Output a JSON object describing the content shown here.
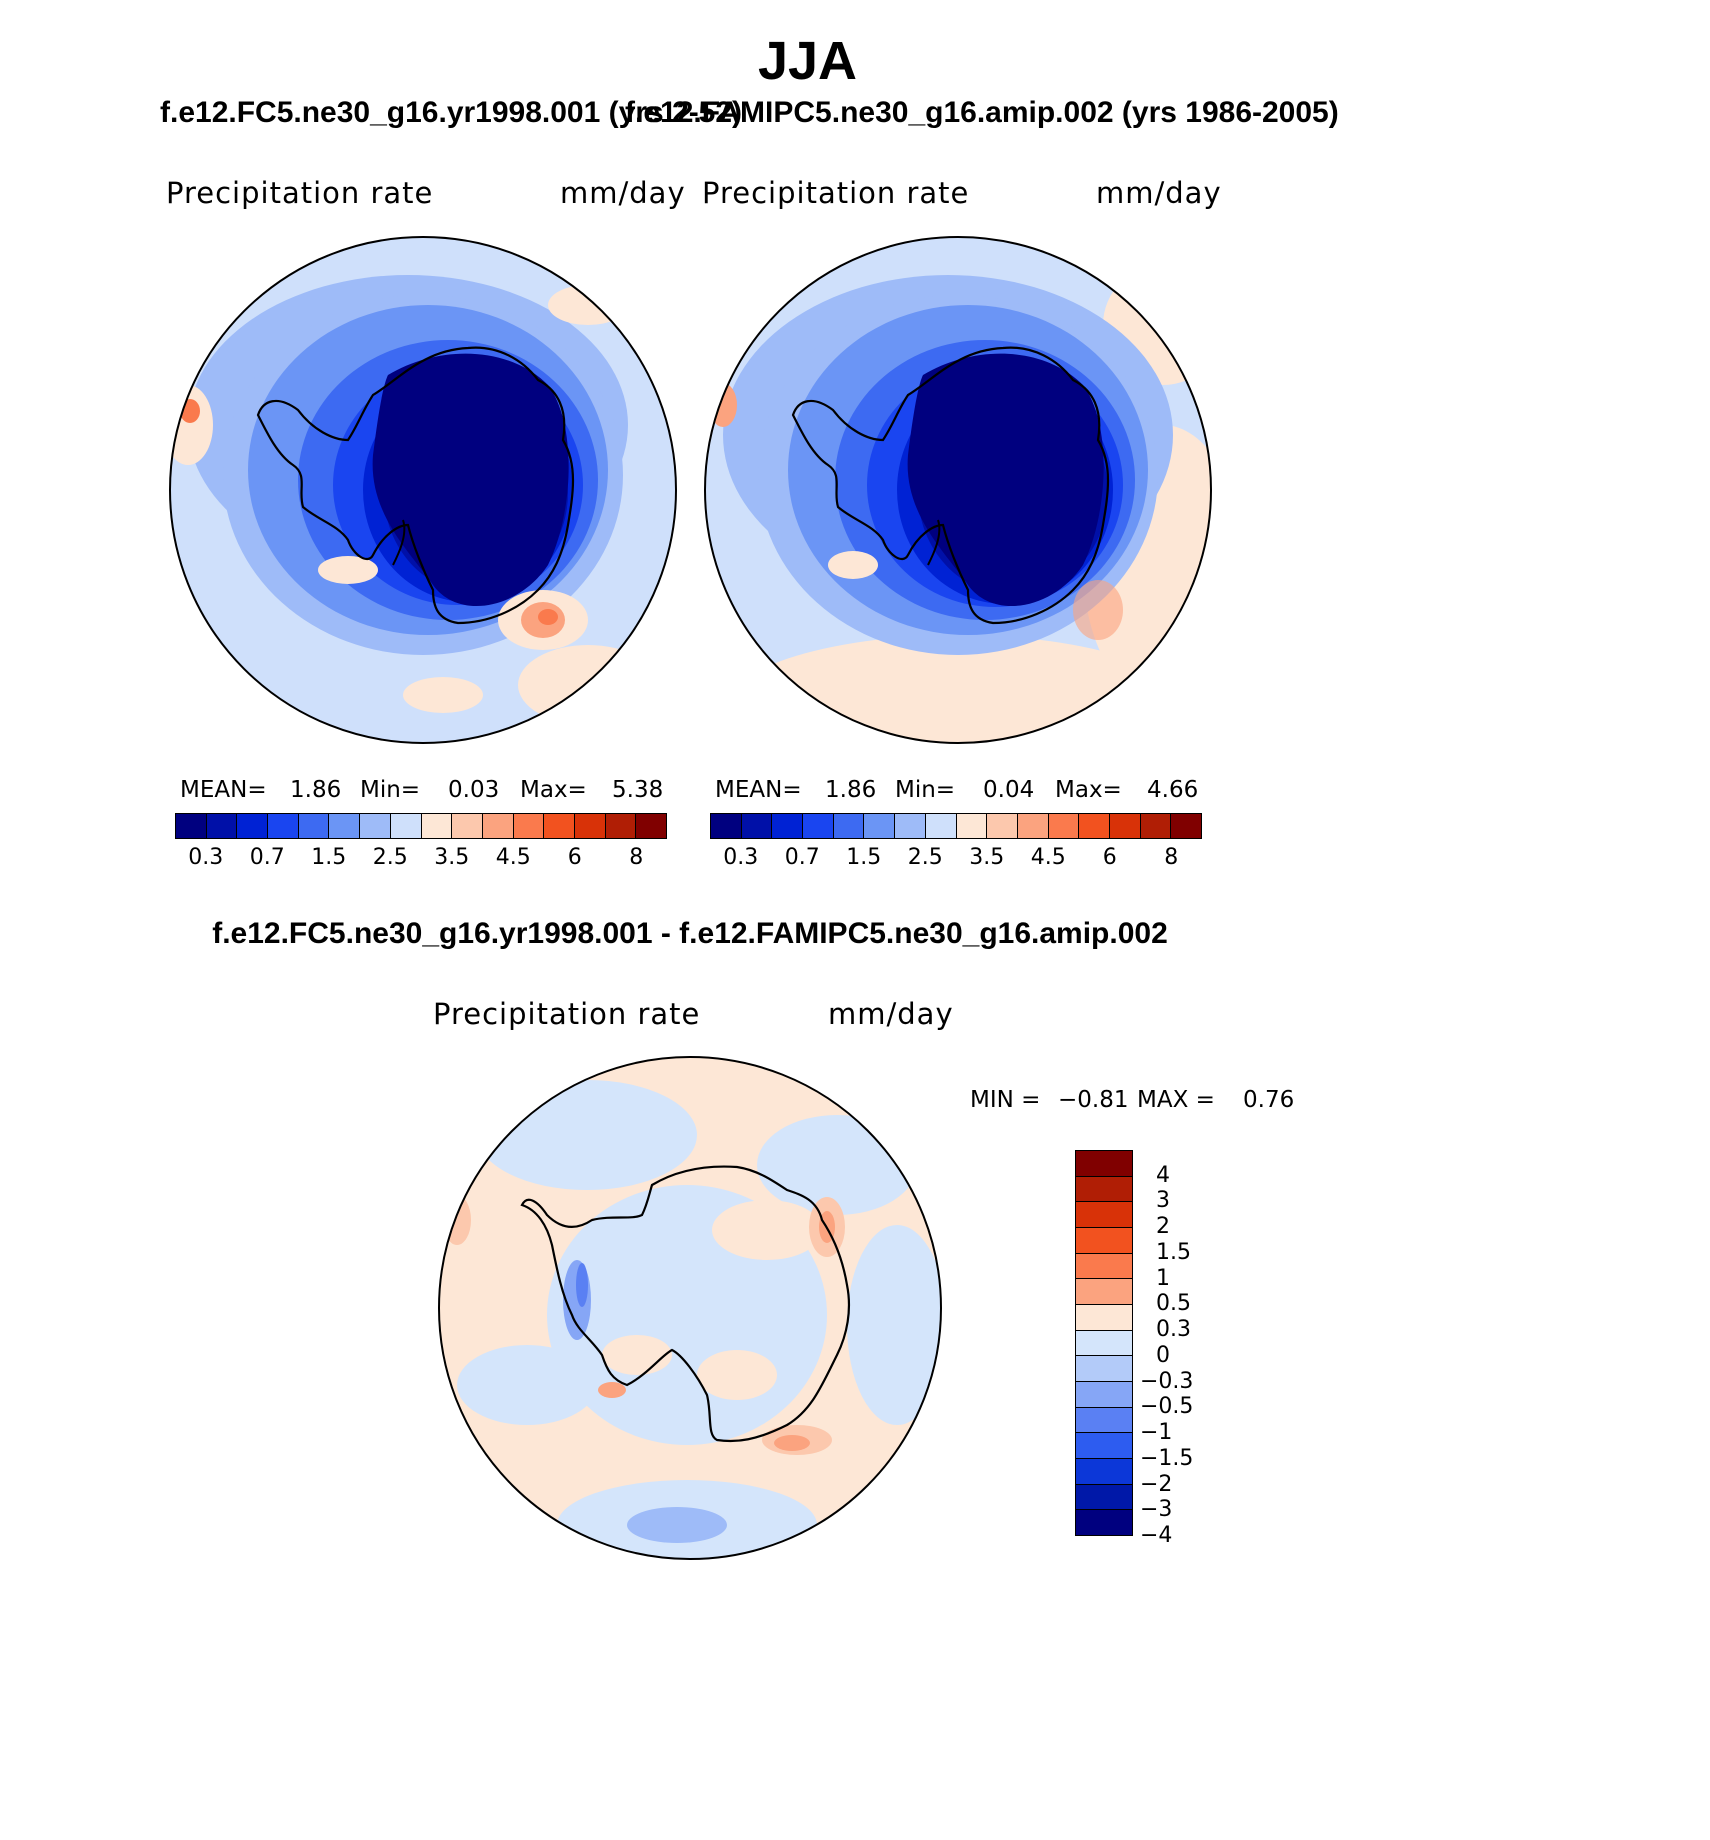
{
  "season": "JJA",
  "panel1": {
    "title": "f.e12.FC5.ne30_g16.yr1998.001 (yrs 2-52)",
    "variable": "Precipitation rate",
    "units": "mm/day",
    "mean_label": "MEAN=",
    "mean": "1.86",
    "min_label": "Min=",
    "min": "0.03",
    "max_label": "Max=",
    "max": "5.38"
  },
  "panel2": {
    "title": "f.e12.FAMIPC5.ne30_g16.amip.002 (yrs 1986-2005)",
    "variable": "Precipitation rate",
    "units": "mm/day",
    "mean_label": "MEAN=",
    "mean": "1.86",
    "min_label": "Min=",
    "min": "0.04",
    "max_label": "Max=",
    "max": "4.66"
  },
  "panel3": {
    "title": "f.e12.FC5.ne30_g16.yr1998.001 - f.e12.FAMIPC5.ne30_g16.amip.002",
    "variable": "Precipitation rate",
    "units": "mm/day",
    "min_label": "MIN =",
    "min": "−0.81",
    "max_label": "MAX =",
    "max": "0.76"
  },
  "abs_colorbar": {
    "colors": [
      "#00007f",
      "#0010a8",
      "#0022d4",
      "#1a45f0",
      "#3d6af2",
      "#6b95f5",
      "#9ebbf8",
      "#cfe0fb",
      "#fde7d6",
      "#fcc8ad",
      "#fba37f",
      "#fa7a4d",
      "#f2521f",
      "#d83208",
      "#b01e05",
      "#800000"
    ],
    "ticks": [
      "0.3",
      "0.7",
      "1.5",
      "2.5",
      "3.5",
      "4.5",
      "6",
      "8"
    ]
  },
  "diff_colorbar": {
    "colors_top_to_bottom": [
      "#800000",
      "#b01e05",
      "#d83208",
      "#f2521f",
      "#fa7a4d",
      "#fba37f",
      "#fde7d6",
      "#d4e5fb",
      "#b3cbf9",
      "#86a6f6",
      "#5a80f3",
      "#2d5cf0",
      "#0c37d8",
      "#0018a8",
      "#00007f"
    ],
    "ticks": [
      "4",
      "3",
      "2",
      "1.5",
      "1",
      "0.5",
      "0.3",
      "0",
      "−0.3",
      "−0.5",
      "−1",
      "−1.5",
      "−2",
      "−3",
      "−4"
    ]
  }
}
